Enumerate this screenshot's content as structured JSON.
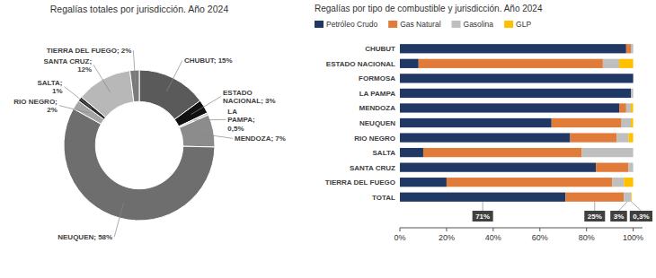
{
  "chart_data": [
    {
      "type": "pie",
      "title": "Regalías totales por jurisdicción. Año 2024",
      "categories": [
        "CHUBUT; 15%",
        "ESTADO\nNACIONAL; 3%",
        "LA\nPAMPA;\n0,5%",
        "MENDOZA; 7%",
        "NEUQUEN; 58%",
        "RIO NEGRO;\n2%",
        "SALTA;\n1%",
        "SANTA CRUZ;\n12%",
        "TIERRA DEL FUEGO; 2%"
      ],
      "values": [
        15,
        3,
        0.5,
        7,
        58,
        2,
        1,
        12,
        2
      ],
      "colors": [
        "#5a5a5a",
        "#111111",
        "#c8c8c8",
        "#8c8c8c",
        "#6e6e6e",
        "#a5a5a5",
        "#2a2a2a",
        "#b8b8b8",
        "#7a7a7a"
      ]
    },
    {
      "type": "bar",
      "orientation": "horizontal",
      "stacked": true,
      "title": "Regalías por tipo de combustible y jurisdicción. Año 2024",
      "categories": [
        "CHUBUT",
        "ESTADO NACIONAL",
        "FORMOSA",
        "LA PAMPA",
        "MENDOZA",
        "NEUQUEN",
        "RIO NEGRO",
        "SALTA",
        "SANTA CRUZ",
        "TIERRA DEL FUEGO",
        "TOTAL"
      ],
      "series": [
        {
          "name": "Petróleo Crudo",
          "color": "#1f3864",
          "values": [
            97,
            8,
            100,
            99,
            94,
            65,
            73,
            10,
            84,
            20,
            71
          ],
          "value_labels": [
            null,
            null,
            null,
            null,
            null,
            null,
            null,
            null,
            null,
            null,
            "71%"
          ]
        },
        {
          "name": "Gas Natural",
          "color": "#e07b39",
          "values": [
            2,
            79,
            0,
            0,
            3,
            30,
            20,
            68,
            14,
            71,
            25
          ],
          "value_labels": [
            null,
            null,
            null,
            null,
            null,
            null,
            null,
            null,
            null,
            null,
            "25%"
          ]
        },
        {
          "name": "Gasolina",
          "color": "#bfbfbf",
          "values": [
            1,
            7,
            0,
            1,
            2,
            4,
            5,
            22,
            2,
            5,
            3
          ],
          "value_labels": [
            null,
            null,
            null,
            null,
            null,
            null,
            null,
            null,
            null,
            null,
            "3%"
          ]
        },
        {
          "name": "GLP",
          "color": "#ffc000",
          "values": [
            0,
            6,
            0,
            0,
            1,
            1,
            2,
            0,
            0,
            4,
            0.3
          ],
          "value_labels": [
            null,
            null,
            null,
            null,
            null,
            null,
            null,
            null,
            null,
            null,
            "0,3%"
          ]
        }
      ],
      "xlim": [
        0,
        104
      ],
      "xticks": [
        {
          "value": 0,
          "label": "0%"
        },
        {
          "value": 20,
          "label": "20%"
        },
        {
          "value": 40,
          "label": "40%"
        },
        {
          "value": 60,
          "label": "60%"
        },
        {
          "value": 80,
          "label": "80%"
        },
        {
          "value": 100,
          "label": "100%"
        }
      ],
      "legend": "top",
      "grid": false
    }
  ]
}
